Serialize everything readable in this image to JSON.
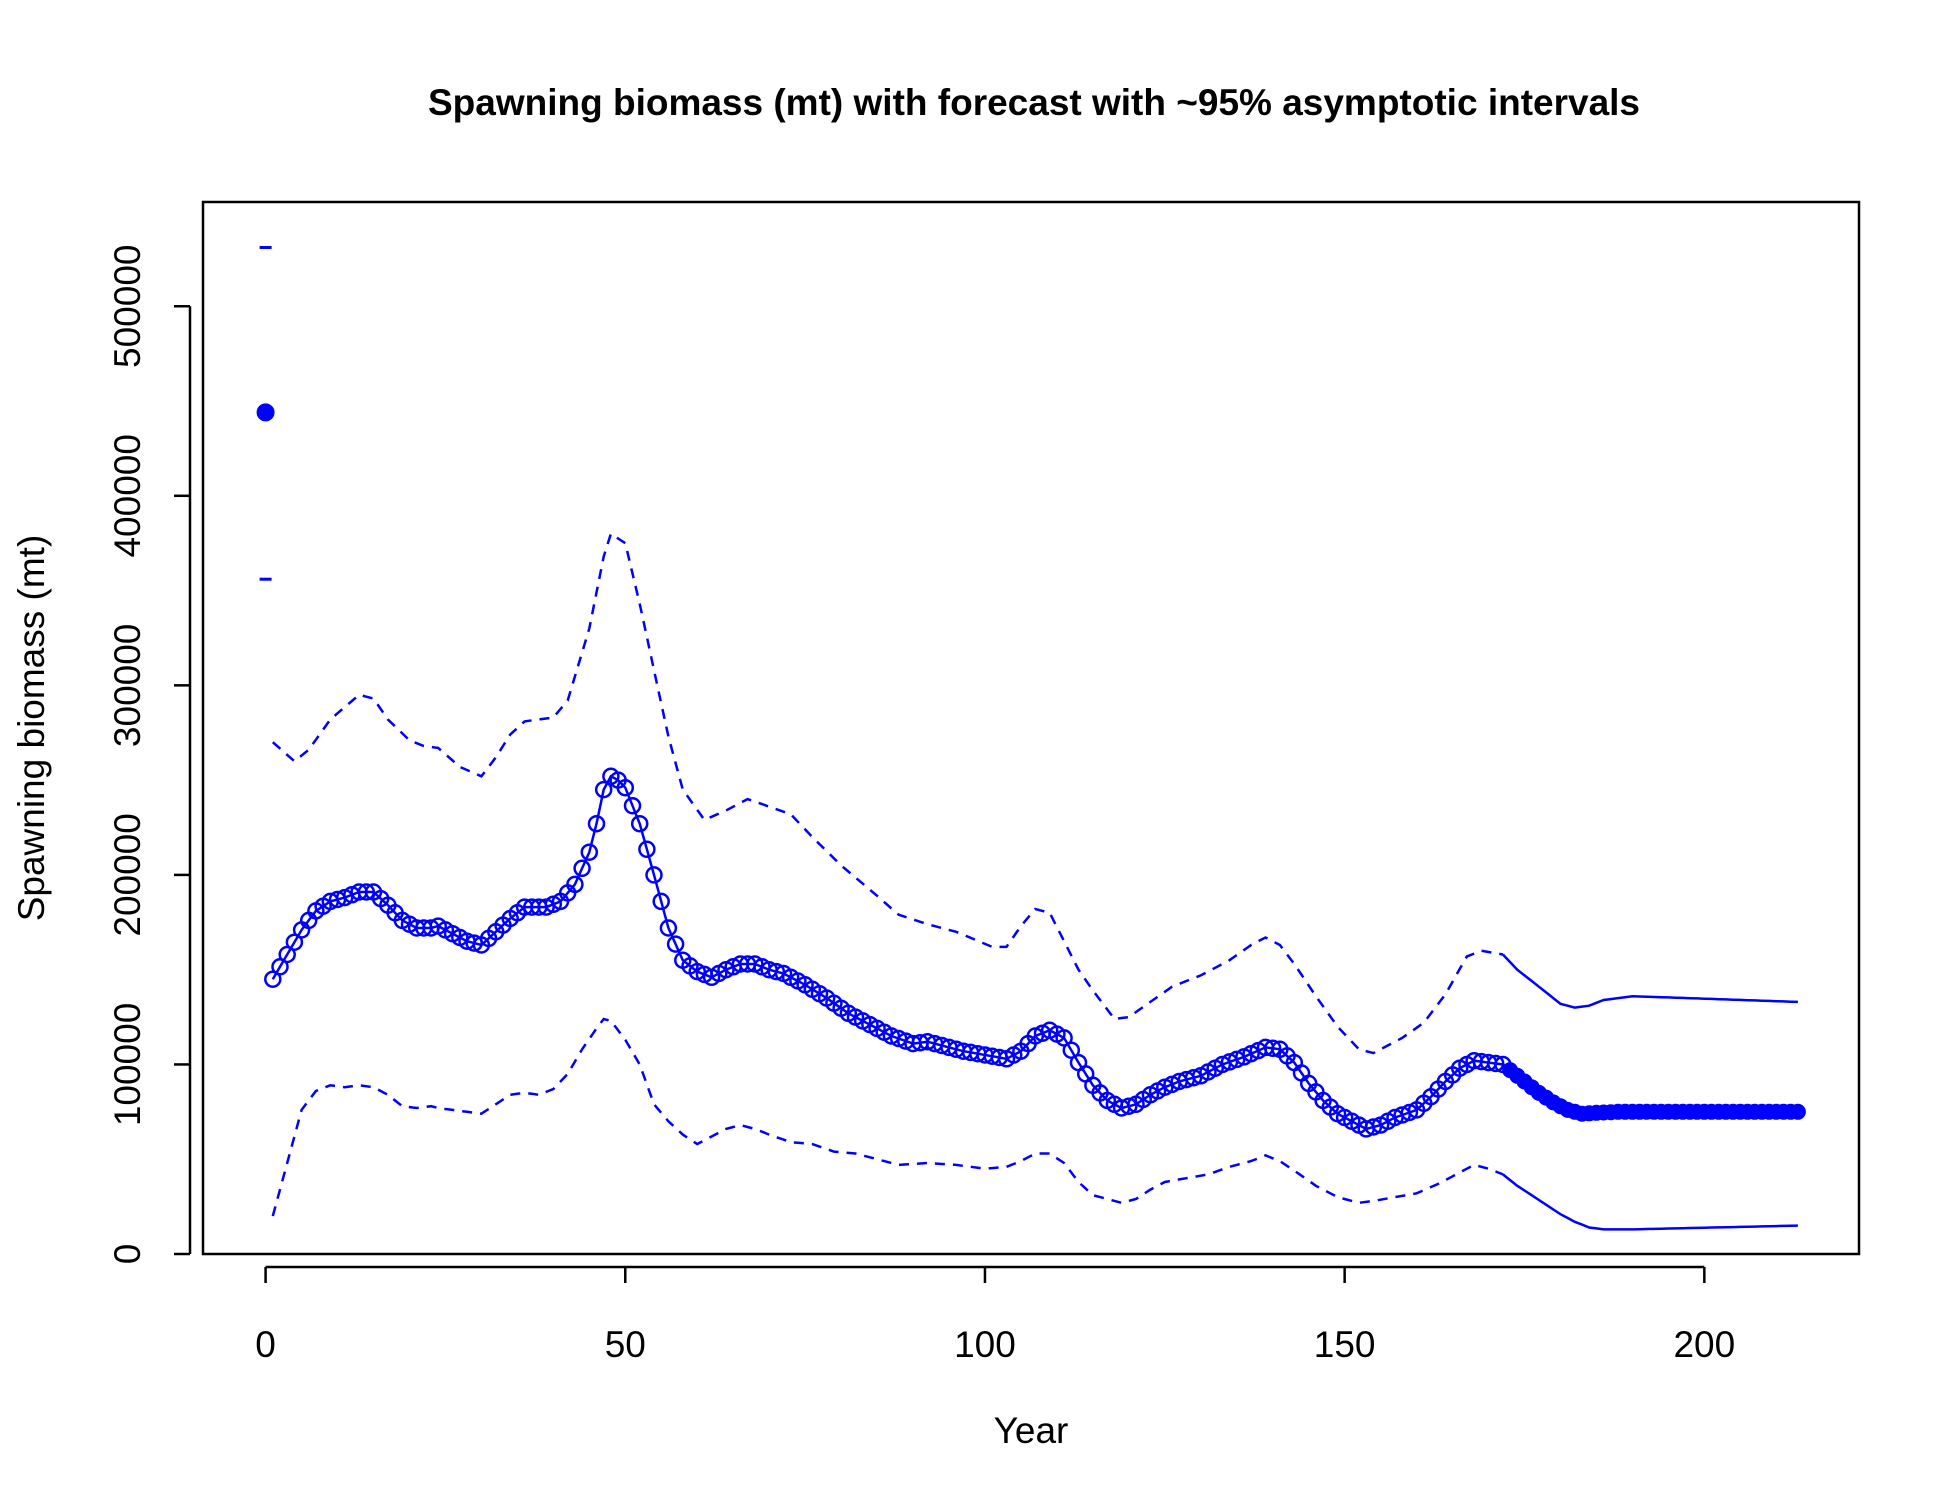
{
  "chart_data": {
    "type": "line",
    "title": "Spawning biomass (mt) with forecast with ~95% asymptotic intervals",
    "xlabel": "Year",
    "ylabel": "Spawning biomass (mt)",
    "xlim": [
      -8.7,
      221.5
    ],
    "ylim": [
      0,
      555000
    ],
    "x_ticks": [
      0,
      50,
      100,
      150,
      200
    ],
    "y_ticks": [
      0,
      100000,
      200000,
      300000,
      400000,
      500000
    ],
    "colors": {
      "series": "#0000FF",
      "axis": "#000000"
    },
    "virgin": {
      "x": 0,
      "value": 444000,
      "upper": 531000,
      "lower": 356000
    },
    "estimate_knots": [
      [
        1,
        145000
      ],
      [
        3,
        158000
      ],
      [
        5,
        171000
      ],
      [
        7,
        181000
      ],
      [
        9,
        186000
      ],
      [
        11,
        188000
      ],
      [
        13,
        191000
      ],
      [
        15,
        191000
      ],
      [
        17,
        184000
      ],
      [
        19,
        176000
      ],
      [
        21,
        172000
      ],
      [
        23,
        172000
      ],
      [
        24,
        173000
      ],
      [
        26,
        169000
      ],
      [
        28,
        165000
      ],
      [
        30,
        163000
      ],
      [
        32,
        170000
      ],
      [
        34,
        177000
      ],
      [
        36,
        183000
      ],
      [
        39,
        183000
      ],
      [
        41,
        186000
      ],
      [
        43,
        195000
      ],
      [
        45,
        212000
      ],
      [
        46,
        227000
      ],
      [
        47,
        245000
      ],
      [
        48,
        252000
      ],
      [
        49,
        250000
      ],
      [
        50,
        246000
      ],
      [
        52,
        227000
      ],
      [
        54,
        200000
      ],
      [
        56,
        172000
      ],
      [
        58,
        155000
      ],
      [
        60,
        149000
      ],
      [
        62,
        146000
      ],
      [
        64,
        150000
      ],
      [
        66,
        153000
      ],
      [
        68,
        153000
      ],
      [
        70,
        150000
      ],
      [
        72,
        148000
      ],
      [
        75,
        142000
      ],
      [
        78,
        135000
      ],
      [
        81,
        127000
      ],
      [
        84,
        121000
      ],
      [
        87,
        115000
      ],
      [
        90,
        111000
      ],
      [
        92,
        112000
      ],
      [
        94,
        110000
      ],
      [
        97,
        107000
      ],
      [
        100,
        105000
      ],
      [
        103,
        103000
      ],
      [
        105,
        107000
      ],
      [
        107,
        115000
      ],
      [
        109,
        118000
      ],
      [
        111,
        114000
      ],
      [
        113,
        101000
      ],
      [
        115,
        89000
      ],
      [
        117,
        81000
      ],
      [
        119,
        77000
      ],
      [
        121,
        79000
      ],
      [
        123,
        84000
      ],
      [
        125,
        88000
      ],
      [
        127,
        91000
      ],
      [
        130,
        94000
      ],
      [
        133,
        100000
      ],
      [
        136,
        104000
      ],
      [
        139,
        109000
      ],
      [
        141,
        108000
      ],
      [
        143,
        101000
      ],
      [
        145,
        90000
      ],
      [
        147,
        81000
      ],
      [
        149,
        74000
      ],
      [
        151,
        70000
      ],
      [
        153,
        66000
      ],
      [
        155,
        68000
      ],
      [
        157,
        72000
      ],
      [
        160,
        76000
      ],
      [
        162,
        83000
      ],
      [
        164,
        91000
      ],
      [
        166,
        98000
      ],
      [
        168,
        102000
      ],
      [
        170,
        101000
      ],
      [
        172,
        100000
      ]
    ],
    "forecast_knots": [
      [
        173,
        97000
      ],
      [
        175,
        91000
      ],
      [
        177,
        85000
      ],
      [
        179,
        80000
      ],
      [
        181,
        76000
      ],
      [
        183,
        74000
      ],
      [
        185,
        74500
      ],
      [
        188,
        75000
      ],
      [
        213,
        75000
      ]
    ],
    "upper_knots": [
      [
        1,
        270000
      ],
      [
        4,
        260000
      ],
      [
        6,
        266000
      ],
      [
        9,
        282000
      ],
      [
        13,
        295000
      ],
      [
        15,
        293000
      ],
      [
        17,
        282000
      ],
      [
        20,
        271000
      ],
      [
        22,
        268000
      ],
      [
        24,
        267000
      ],
      [
        27,
        257000
      ],
      [
        30,
        252000
      ],
      [
        32,
        262000
      ],
      [
        34,
        274000
      ],
      [
        36,
        281000
      ],
      [
        40,
        283000
      ],
      [
        42,
        292000
      ],
      [
        45,
        330000
      ],
      [
        47,
        368000
      ],
      [
        48,
        380000
      ],
      [
        50,
        375000
      ],
      [
        52,
        343000
      ],
      [
        54,
        308000
      ],
      [
        56,
        273000
      ],
      [
        58,
        245000
      ],
      [
        61,
        229000
      ],
      [
        64,
        234000
      ],
      [
        67,
        240000
      ],
      [
        70,
        236000
      ],
      [
        73,
        232000
      ],
      [
        76,
        220000
      ],
      [
        80,
        205000
      ],
      [
        85,
        189000
      ],
      [
        88,
        179000
      ],
      [
        92,
        174000
      ],
      [
        96,
        170000
      ],
      [
        101,
        162000
      ],
      [
        103,
        162000
      ],
      [
        105,
        173000
      ],
      [
        107,
        182000
      ],
      [
        109,
        180000
      ],
      [
        111,
        165000
      ],
      [
        113,
        150000
      ],
      [
        115,
        139000
      ],
      [
        118,
        124000
      ],
      [
        120,
        125000
      ],
      [
        123,
        133000
      ],
      [
        126,
        141000
      ],
      [
        130,
        147000
      ],
      [
        134,
        155000
      ],
      [
        137,
        163000
      ],
      [
        139,
        167000
      ],
      [
        141,
        163000
      ],
      [
        143,
        153000
      ],
      [
        146,
        136000
      ],
      [
        149,
        120000
      ],
      [
        152,
        108000
      ],
      [
        154,
        106000
      ],
      [
        158,
        114000
      ],
      [
        161,
        122000
      ],
      [
        164,
        137000
      ],
      [
        167,
        157000
      ],
      [
        169,
        160000
      ],
      [
        172,
        158000
      ]
    ],
    "upper_forecast_knots": [
      [
        174,
        150000
      ],
      [
        176,
        144000
      ],
      [
        178,
        138000
      ],
      [
        180,
        132000
      ],
      [
        182,
        130000
      ],
      [
        184,
        131000
      ],
      [
        186,
        134000
      ],
      [
        190,
        136000
      ],
      [
        213,
        133000
      ]
    ],
    "lower_knots": [
      [
        1,
        20000
      ],
      [
        3,
        48000
      ],
      [
        5,
        76000
      ],
      [
        7,
        86000
      ],
      [
        9,
        89000
      ],
      [
        11,
        88000
      ],
      [
        13,
        89000
      ],
      [
        15,
        88000
      ],
      [
        17,
        84000
      ],
      [
        19,
        78000
      ],
      [
        21,
        77000
      ],
      [
        23,
        78000
      ],
      [
        24,
        77000
      ],
      [
        26,
        76000
      ],
      [
        28,
        75000
      ],
      [
        30,
        74000
      ],
      [
        32,
        79000
      ],
      [
        34,
        84000
      ],
      [
        36,
        85000
      ],
      [
        38,
        84000
      ],
      [
        40,
        87000
      ],
      [
        42,
        95000
      ],
      [
        44,
        108000
      ],
      [
        46,
        119000
      ],
      [
        47,
        124000
      ],
      [
        48,
        123000
      ],
      [
        50,
        113000
      ],
      [
        52,
        100000
      ],
      [
        54,
        79000
      ],
      [
        56,
        70000
      ],
      [
        58,
        63000
      ],
      [
        60,
        58000
      ],
      [
        62,
        62000
      ],
      [
        64,
        66000
      ],
      [
        66,
        68000
      ],
      [
        68,
        66000
      ],
      [
        70,
        63000
      ],
      [
        73,
        59000
      ],
      [
        76,
        58000
      ],
      [
        79,
        54000
      ],
      [
        82,
        53000
      ],
      [
        85,
        50000
      ],
      [
        88,
        47000
      ],
      [
        92,
        48000
      ],
      [
        96,
        47000
      ],
      [
        100,
        45000
      ],
      [
        103,
        46000
      ],
      [
        105,
        49000
      ],
      [
        107,
        53000
      ],
      [
        109,
        53000
      ],
      [
        111,
        48000
      ],
      [
        113,
        38000
      ],
      [
        115,
        31000
      ],
      [
        117,
        29000
      ],
      [
        119,
        27000
      ],
      [
        121,
        29000
      ],
      [
        123,
        34000
      ],
      [
        125,
        38000
      ],
      [
        128,
        40000
      ],
      [
        131,
        42000
      ],
      [
        134,
        46000
      ],
      [
        137,
        49000
      ],
      [
        139,
        52000
      ],
      [
        141,
        49000
      ],
      [
        143,
        44000
      ],
      [
        146,
        36000
      ],
      [
        149,
        30000
      ],
      [
        152,
        27000
      ],
      [
        154,
        28000
      ],
      [
        157,
        30000
      ],
      [
        160,
        32000
      ],
      [
        163,
        37000
      ],
      [
        166,
        43000
      ],
      [
        168,
        47000
      ],
      [
        170,
        45000
      ],
      [
        172,
        42000
      ]
    ],
    "lower_forecast_knots": [
      [
        174,
        36000
      ],
      [
        176,
        31000
      ],
      [
        178,
        26000
      ],
      [
        180,
        21000
      ],
      [
        182,
        17000
      ],
      [
        184,
        14000
      ],
      [
        186,
        13000
      ],
      [
        190,
        13000
      ],
      [
        213,
        15000
      ]
    ]
  }
}
